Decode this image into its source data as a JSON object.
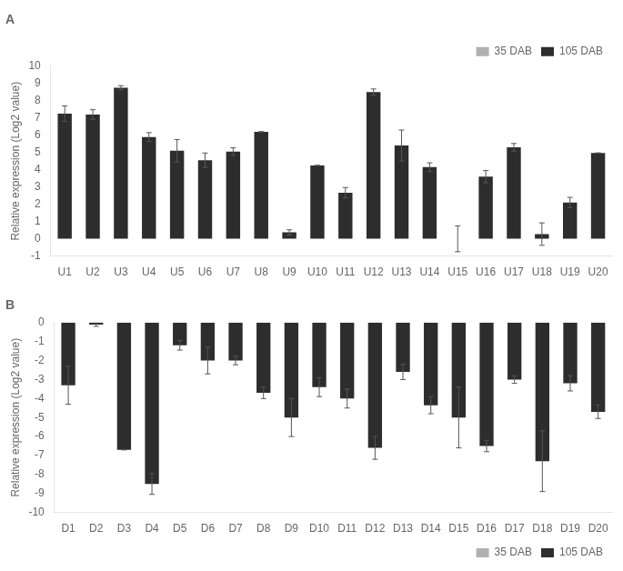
{
  "chart_data": [
    {
      "type": "bar",
      "title": "A",
      "categories": [
        "U1",
        "U2",
        "U3",
        "U4",
        "U5",
        "U6",
        "U7",
        "U8",
        "U9",
        "U10",
        "U11",
        "U12",
        "U13",
        "U14",
        "U15",
        "U16",
        "U17",
        "U18",
        "U19",
        "U20"
      ],
      "series": [
        {
          "name": "35 DAB",
          "color": "#b0b0b0",
          "values": [
            0,
            0,
            0,
            0,
            0,
            0,
            0,
            0,
            0,
            0,
            0,
            0,
            0,
            0,
            0,
            0,
            0,
            0,
            0,
            0
          ]
        },
        {
          "name": "105 DAB",
          "color": "#2d2d2d",
          "values": [
            7.25,
            7.2,
            8.75,
            5.9,
            5.1,
            4.55,
            5.05,
            6.2,
            0.37,
            4.25,
            2.67,
            8.5,
            5.4,
            4.15,
            0.0,
            3.6,
            5.3,
            0.27,
            2.1,
            4.97
          ],
          "errors": [
            0.45,
            0.28,
            0.12,
            0.25,
            0.65,
            0.42,
            0.22,
            0.0,
            0.15,
            0.0,
            0.3,
            0.18,
            0.9,
            0.25,
            0.75,
            0.35,
            0.22,
            0.65,
            0.3,
            0.0
          ]
        }
      ],
      "y_label": "Relative expression (Log2 value)",
      "ylim": [
        -1,
        10
      ],
      "yticks": [
        -1,
        0,
        1,
        2,
        3,
        4,
        5,
        6,
        7,
        8,
        9,
        10
      ],
      "legend": "upper right",
      "grid": false
    },
    {
      "type": "bar",
      "title": "B",
      "categories": [
        "D1",
        "D2",
        "D3",
        "D4",
        "D5",
        "D6",
        "D7",
        "D8",
        "D9",
        "D10",
        "D11",
        "D12",
        "D13",
        "D14",
        "D15",
        "D16",
        "D17",
        "D18",
        "D19",
        "D20"
      ],
      "series": [
        {
          "name": "35 DAB",
          "color": "#b0b0b0",
          "values": [
            0,
            0,
            0,
            0,
            0,
            0,
            0,
            0,
            0,
            0,
            0,
            0,
            0,
            0,
            0,
            0,
            0,
            0,
            0,
            0
          ]
        },
        {
          "name": "105 DAB",
          "color": "#2d2d2d",
          "values": [
            -3.3,
            -0.1,
            -6.7,
            -8.5,
            -1.2,
            -2.0,
            -2.0,
            -3.7,
            -5.0,
            -3.4,
            -4.0,
            -6.6,
            -2.6,
            -4.35,
            -5.0,
            -6.5,
            -3.0,
            -7.3,
            -3.2,
            -4.7
          ],
          "errors": [
            1.0,
            0.1,
            0.0,
            0.55,
            0.25,
            0.7,
            0.22,
            0.3,
            1.0,
            0.5,
            0.5,
            0.6,
            0.4,
            0.45,
            1.6,
            0.3,
            0.2,
            1.6,
            0.4,
            0.35
          ]
        }
      ],
      "y_label": "Relative expression (Log2 value)",
      "ylim": [
        -10,
        0
      ],
      "yticks": [
        -10,
        -9,
        -8,
        -7,
        -6,
        -5,
        -4,
        -3,
        -2,
        -1,
        0
      ],
      "legend": "lower right",
      "grid": false
    }
  ]
}
